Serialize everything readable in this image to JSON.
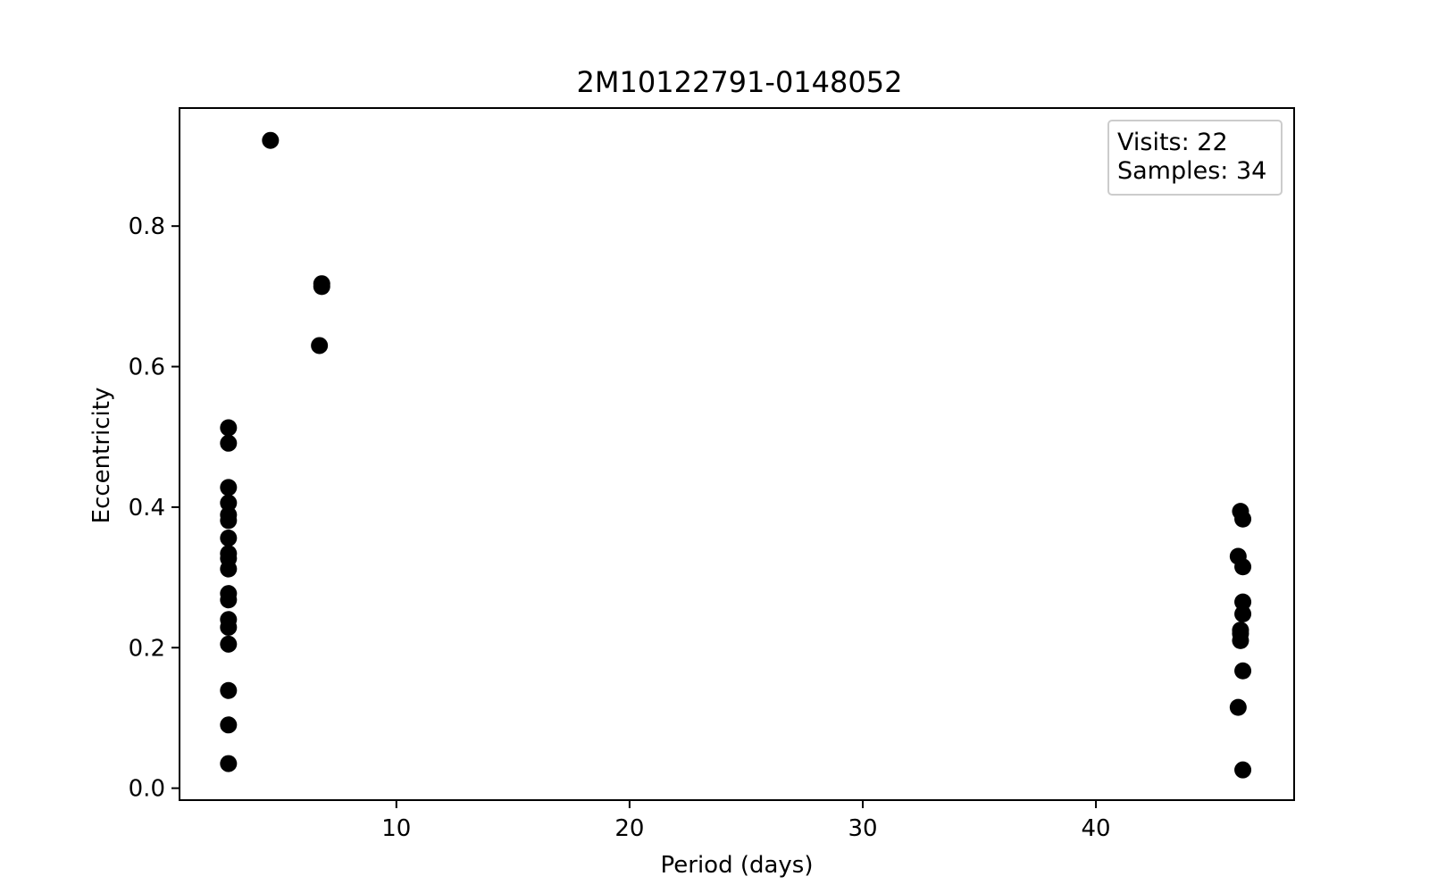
{
  "chart_data": {
    "type": "scatter",
    "title": "2M10122791-0148052",
    "xlabel": "Period (days)",
    "ylabel": "Eccentricity",
    "xlim": [
      0.7,
      48.5
    ],
    "ylim": [
      -0.017,
      0.968
    ],
    "xticks": [
      10,
      20,
      30,
      40
    ],
    "xtick_labels": [
      "10",
      "20",
      "30",
      "40"
    ],
    "yticks": [
      0.0,
      0.2,
      0.4,
      0.6,
      0.8
    ],
    "ytick_labels": [
      "0.0",
      "0.2",
      "0.4",
      "0.6",
      "0.8"
    ],
    "grid": false,
    "marker_color": "#000000",
    "annotation": {
      "lines": [
        "Visits: 22",
        "Samples: 34"
      ],
      "placement": "top-right"
    },
    "points": [
      {
        "x": 2.8,
        "y": 0.513
      },
      {
        "x": 2.8,
        "y": 0.491
      },
      {
        "x": 2.8,
        "y": 0.428
      },
      {
        "x": 2.8,
        "y": 0.406
      },
      {
        "x": 2.8,
        "y": 0.389
      },
      {
        "x": 2.8,
        "y": 0.381
      },
      {
        "x": 2.8,
        "y": 0.356
      },
      {
        "x": 2.8,
        "y": 0.334
      },
      {
        "x": 2.8,
        "y": 0.327
      },
      {
        "x": 2.8,
        "y": 0.312
      },
      {
        "x": 2.8,
        "y": 0.277
      },
      {
        "x": 2.8,
        "y": 0.268
      },
      {
        "x": 2.8,
        "y": 0.24
      },
      {
        "x": 2.8,
        "y": 0.229
      },
      {
        "x": 2.8,
        "y": 0.205
      },
      {
        "x": 2.8,
        "y": 0.139
      },
      {
        "x": 2.8,
        "y": 0.09
      },
      {
        "x": 2.8,
        "y": 0.035
      },
      {
        "x": 4.6,
        "y": 0.922
      },
      {
        "x": 6.8,
        "y": 0.718
      },
      {
        "x": 6.8,
        "y": 0.714
      },
      {
        "x": 6.7,
        "y": 0.63
      },
      {
        "x": 46.2,
        "y": 0.394
      },
      {
        "x": 46.3,
        "y": 0.383
      },
      {
        "x": 46.1,
        "y": 0.33
      },
      {
        "x": 46.3,
        "y": 0.315
      },
      {
        "x": 46.3,
        "y": 0.265
      },
      {
        "x": 46.3,
        "y": 0.248
      },
      {
        "x": 46.2,
        "y": 0.225
      },
      {
        "x": 46.2,
        "y": 0.21
      },
      {
        "x": 46.3,
        "y": 0.167
      },
      {
        "x": 46.1,
        "y": 0.115
      },
      {
        "x": 46.3,
        "y": 0.026
      },
      {
        "x": 46.2,
        "y": 0.22
      }
    ]
  }
}
